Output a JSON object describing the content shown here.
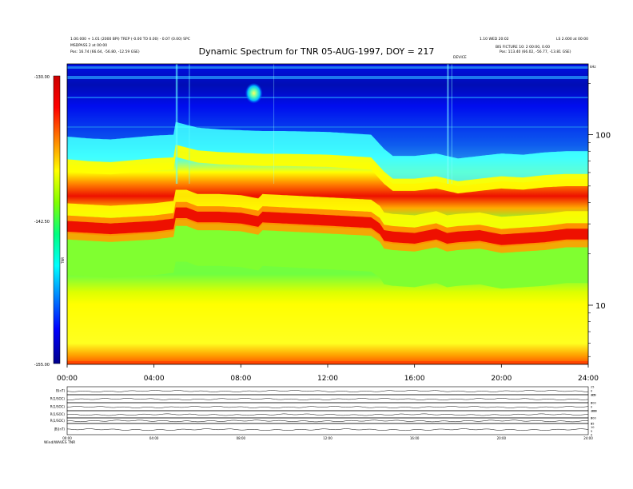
{
  "header": {
    "left_line1": "1.00.000 + 1.01 (2000 BPI) TREP (-0.00 TO 0.00) - 0.07 (0.00) SPC",
    "left_line2": "MSDPASS 2 at 00:00",
    "left_pos": "Pos:   16.74 (66.64, -56.80, -12.59 GSE)",
    "right_line1": "1.10 WED 20:02",
    "right_line1b": "LS 2.000 at 00:00",
    "right_line2": "BIS FICTURE 10: 2 00:00, 0.00",
    "right_pos": "Pos:   113.40 (66.02, -56.77, -13.81 GSE)",
    "mid_marker": "DEVICE"
  },
  "title": "Dynamic Spectrum for TNR 05-AUG-1997, DOY = 217",
  "colorbar": {
    "top_label": "-130.00",
    "mid_label": "-142.50",
    "bottom_label": "-155.00",
    "axis_label": "TNR",
    "colors": [
      "#cc0000",
      "#ff0000",
      "#ff8000",
      "#ffff00",
      "#80ff00",
      "#00ff80",
      "#00ffff",
      "#0080ff",
      "#0000ff",
      "#00008b"
    ]
  },
  "chart_data": {
    "type": "heatmap",
    "title": "Dynamic Spectrum for TNR 05-AUG-1997, DOY = 217",
    "x_ticks": [
      "00:00",
      "04:00",
      "08:00",
      "12:00",
      "16:00",
      "20:00",
      "24:00"
    ],
    "x_range_hours": [
      0,
      24
    ],
    "y_scale": "log",
    "y_unit": "kHz",
    "y_ticks": [
      10,
      100
    ],
    "y_range": [
      4.5,
      260
    ],
    "color_range": [
      -155.0,
      -130.0
    ],
    "plasma_line_khz": {
      "hours": [
        0,
        1,
        2,
        3,
        4,
        4.9,
        5.0,
        5.5,
        6,
        7,
        8,
        8.8,
        9,
        10,
        11,
        12,
        13,
        14,
        14.4,
        14.6,
        15,
        16,
        17,
        17.5,
        18,
        19,
        20,
        21,
        22,
        23,
        24
      ],
      "values": [
        30,
        29.5,
        29,
        29.5,
        30,
        31,
        36,
        36,
        34,
        34,
        33.5,
        32,
        34,
        33.5,
        33,
        32.5,
        32,
        31.5,
        29,
        26.5,
        26,
        25.5,
        27,
        25.5,
        26,
        26.5,
        25,
        25.5,
        26,
        27,
        27
      ]
    },
    "cyan_edge_khz": {
      "hours": [
        0,
        1,
        2,
        3,
        4,
        4.9,
        5.0,
        6,
        7,
        8,
        9,
        10,
        12,
        14,
        14.6,
        15,
        16,
        17,
        18,
        19,
        20,
        21,
        22,
        23,
        24
      ],
      "values": [
        78,
        76,
        75,
        77,
        79,
        80,
        95,
        88,
        86,
        85,
        84,
        84,
        83,
        80,
        66,
        60,
        60,
        62,
        58,
        60,
        62,
        61,
        63,
        64,
        64
      ]
    },
    "bright_spot": {
      "hour": 8.6,
      "khz": 175
    }
  },
  "bottom_panels": {
    "labels": [
      "B(nT)",
      "R(1/SOC)",
      "R(1/SOC)",
      "R(1/SOC)",
      "R(1/SOC)",
      "|B|(nT)"
    ],
    "right_ticks": [
      [
        "25",
        "0",
        "-25"
      ],
      [
        "300",
        "0"
      ],
      [
        "300",
        "0",
        "-300"
      ],
      [
        "100",
        "0"
      ],
      [
        "300",
        "0"
      ],
      [
        "15",
        "10",
        "5",
        "0"
      ]
    ],
    "x_ticks": [
      "00:00",
      "04:00",
      "08:00",
      "12:00",
      "16:00",
      "20:00",
      "24:00"
    ],
    "footer": "Wind/WAVES TNR"
  }
}
